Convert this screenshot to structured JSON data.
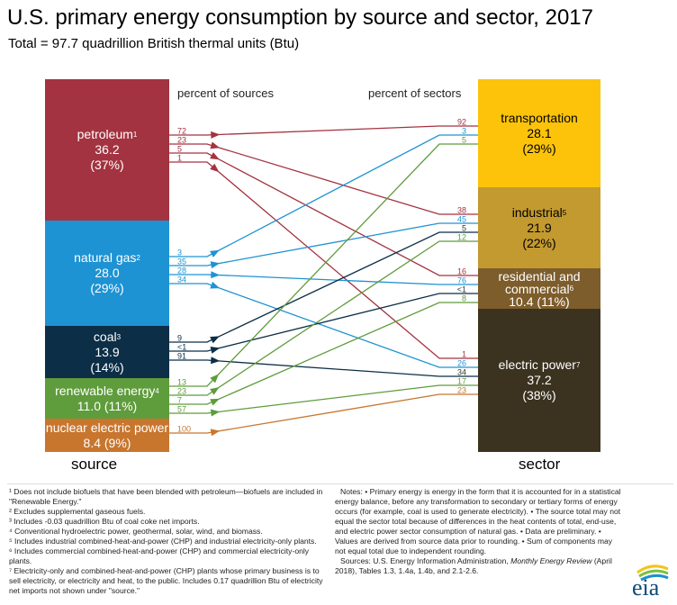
{
  "title": "U.S. primary energy consumption by source and sector, 2017",
  "subtitle": "Total = 97.7 quadrillion British thermal units (Btu)",
  "headers": {
    "sources": "percent of sources",
    "sectors": "percent of sectors"
  },
  "source_label": "source",
  "sector_label": "sector",
  "sources": [
    {
      "name": "petroleum",
      "sup": "1",
      "value": "36.2",
      "pct": "(37%)",
      "color": "#a33340"
    },
    {
      "name": "natural gas",
      "sup": "2",
      "value": "28.0",
      "pct": "(29%)",
      "color": "#1e93d3"
    },
    {
      "name": "coal",
      "sup": "3",
      "value": "13.9",
      "pct": "(14%)",
      "color": "#0c2e47"
    },
    {
      "name": "renewable energy",
      "sup": "4",
      "value": "11.0 (11%)",
      "pct": "",
      "color": "#5f9c3c"
    },
    {
      "name": "nuclear electric power",
      "sup": "",
      "value": "8.4 (9%)",
      "pct": "",
      "color": "#c8762e"
    }
  ],
  "sectors": [
    {
      "name": "transportation",
      "sup": "",
      "value": "28.1",
      "pct": "(29%)",
      "color": "#fcc30a",
      "text_color": "#000"
    },
    {
      "name": "industrial",
      "sup": "5",
      "value": "21.9",
      "pct": "(22%)",
      "color": "#c39a30",
      "text_color": "#000"
    },
    {
      "name": "residential and commercial",
      "sup": "6",
      "value": "10.4 (11%)",
      "pct": "",
      "color": "#7d5d2c",
      "text_color": "#fff"
    },
    {
      "name": "electric power",
      "sup": "7",
      "value": "37.2",
      "pct": "(38%)",
      "color": "#3c3220",
      "text_color": "#fff"
    }
  ],
  "flows": [
    {
      "source": 0,
      "sector": 0,
      "source_pct": "72",
      "sector_pct": "92"
    },
    {
      "source": 0,
      "sector": 1,
      "source_pct": "23",
      "sector_pct": "38"
    },
    {
      "source": 0,
      "sector": 2,
      "source_pct": "5",
      "sector_pct": "16"
    },
    {
      "source": 0,
      "sector": 3,
      "source_pct": "1",
      "sector_pct": "1"
    },
    {
      "source": 1,
      "sector": 0,
      "source_pct": "3",
      "sector_pct": "3"
    },
    {
      "source": 1,
      "sector": 1,
      "source_pct": "35",
      "sector_pct": "45"
    },
    {
      "source": 1,
      "sector": 2,
      "source_pct": "28",
      "sector_pct": "76"
    },
    {
      "source": 1,
      "sector": 3,
      "source_pct": "34",
      "sector_pct": "26"
    },
    {
      "source": 2,
      "sector": 1,
      "source_pct": "9",
      "sector_pct": "5"
    },
    {
      "source": 2,
      "sector": 2,
      "source_pct": "<1",
      "sector_pct": "<1"
    },
    {
      "source": 2,
      "sector": 3,
      "source_pct": "91",
      "sector_pct": "34"
    },
    {
      "source": 3,
      "sector": 0,
      "source_pct": "13",
      "sector_pct": "5"
    },
    {
      "source": 3,
      "sector": 1,
      "source_pct": "23",
      "sector_pct": "12"
    },
    {
      "source": 3,
      "sector": 2,
      "source_pct": "7",
      "sector_pct": "8"
    },
    {
      "source": 3,
      "sector": 3,
      "source_pct": "57",
      "sector_pct": "17"
    },
    {
      "source": 4,
      "sector": 3,
      "source_pct": "100",
      "sector_pct": "23"
    }
  ],
  "footnotes": [
    "¹ Does not include biofuels that have been blended with petroleum—biofuels are included in \"Renewable Energy.\"",
    "² Excludes supplemental gaseous fuels.",
    "³ Includes -0.03 quadrillion Btu of coal coke net imports.",
    "⁴ Conventional hydroelectric power, geothermal, solar, wind, and biomass.",
    "⁵ Includes industrial combined-heat-and-power (CHP) and industrial electricity-only plants.",
    "⁶ Includes commercial combined-heat-and-power (CHP) and commercial electricity-only plants.",
    "⁷ Electricity-only and combined-heat-and-power (CHP) plants whose primary business is to sell electricity, or electricity and heat, to the public. Includes 0.17 quadrillion Btu of electricity net imports not shown under \"source.\""
  ],
  "notes": "Notes: • Primary energy is energy in the form that it is accounted for in a statistical energy balance, before any transformation to secondary or tertiary forms of energy occurs (for example, coal is used to generate electricity). • The source total may not equal the sector total because of differences in the heat contents of total, end-use, and electric power sector consumption of natural gas. • Data are preliminary. • Values are derived from source data prior to rounding. • Sum of components may not equal total due to independent rounding.",
  "sources_note": {
    "prefix": "Sources: U.S. Energy Information Administration, ",
    "italic": "Monthly Energy Review",
    "suffix": " (April 2018), Tables 1.3, 1.4a, 1.4b, and 2.1-2.6."
  },
  "logo_text": "eia"
}
